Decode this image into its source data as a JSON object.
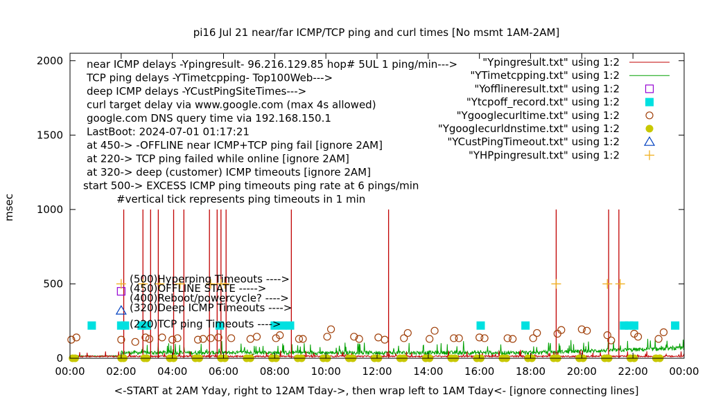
{
  "chart_data": {
    "type": "line",
    "title": "pi16 Jul 21  near/far ICMP/TCP ping and curl times [No msmt 1AM-2AM]",
    "xlabel": "<-START at 2AM Yday, right to 12AM Tday->, then wrap left to 1AM Tday<- [ignore connecting lines]",
    "ylabel": "msec",
    "xlim": [
      0,
      24
    ],
    "ylim": [
      0,
      2050
    ],
    "x_ticks": [
      "00:00",
      "02:00",
      "04:00",
      "06:00",
      "08:00",
      "10:00",
      "12:00",
      "14:00",
      "16:00",
      "18:00",
      "20:00",
      "22:00",
      "00:00"
    ],
    "y_ticks": [
      0,
      500,
      1000,
      1500,
      2000
    ],
    "notes_left": [
      "near ICMP delays -Ypingresult- 96.216.129.85 hop# 5UL 1 ping/min--->",
      "TCP ping delays -YTimetcpping- Top100Web--->",
      "deep ICMP delays -YCustPingSiteTimes--->",
      "curl target delay via www.google.com (max 4s allowed)",
      "google.com DNS query time via 192.168.150.1",
      "LastBoot: 2024-07-01 01:17:21",
      "at 450-> -OFFLINE near ICMP+TCP ping fail [ignore 2AM]",
      "at 220-> TCP ping failed while online [ignore 2AM]",
      "at 320-> deep (customer) ICMP timeouts [ignore 2AM]",
      "start 500-> EXCESS ICMP ping timeouts ping rate at 6 pings/min",
      "#vertical tick represents ping timeouts in 1 min"
    ],
    "inner_labels": [
      "(500)Hyperping Timeouts ---->",
      "(450)OFFLINE STATE ----->",
      "(400)Reboot/powercycle? ---->",
      "(320)Deep ICMP Timeouts ---->",
      "(220)TCP ping Timeouts ---->"
    ],
    "legend_position": "top-right",
    "series": [
      {
        "name": "\"Ypingresult.txt\" using 1:2",
        "color": "#c00000",
        "style": "line"
      },
      {
        "name": "\"YTimetcpping.txt\" using 1:2",
        "color": "#00a000",
        "style": "line"
      },
      {
        "name": "\"Yofflineresult.txt\" using 1:2",
        "color": "#9400d3",
        "style": "open-square"
      },
      {
        "name": "\"Ytcpoff_record.txt\" using 1:2",
        "color": "#00e0e0",
        "style": "filled-square"
      },
      {
        "name": "\"Ygooglecurltime.txt\" using 1:2",
        "color": "#a0400a",
        "style": "open-circle"
      },
      {
        "name": "\"Ygooglecurldnstime.txt\" using 1:2",
        "color": "#c8c800",
        "style": "filled-circle"
      },
      {
        "name": "\"YCustPingTimeout.txt\" using 1:2",
        "color": "#0040c0",
        "style": "open-triangle"
      },
      {
        "name": "\"YHPpingresult.txt\" using 1:2",
        "color": "#f0b020",
        "style": "plus"
      }
    ],
    "ping_spikes_x": [
      2.1,
      2.85,
      3.15,
      3.45,
      4.05,
      4.45,
      5.45,
      5.75,
      5.9,
      6.1,
      8.65,
      12.45,
      19.0,
      21.05,
      21.45
    ],
    "ping_spike_y": 1000,
    "tcp_timeouts": {
      "y": 220,
      "x": [
        0.85,
        2.0,
        2.15,
        2.8,
        3.0,
        5.85,
        8.0,
        8.3,
        8.6,
        16.05,
        17.8,
        21.65,
        21.85,
        22.05,
        23.65
      ]
    },
    "offline": {
      "y": 450,
      "x": [
        2.0
      ]
    },
    "deep_timeouts": {
      "y": 320,
      "x": [
        2.0
      ]
    },
    "hyperping": {
      "y": 500,
      "x": [
        2.0,
        2.85,
        3.5,
        4.3,
        5.5,
        5.9,
        6.05,
        19.0,
        21.0,
        21.5
      ]
    },
    "curl_times": {
      "x": [
        0.05,
        0.25,
        2.0,
        2.55,
        2.95,
        3.1,
        3.6,
        4.0,
        4.2,
        5.0,
        5.2,
        5.5,
        5.8,
        6.3,
        7.05,
        7.3,
        8.05,
        8.2,
        8.95,
        9.1,
        10.05,
        10.2,
        11.1,
        11.3,
        12.05,
        12.3,
        13.05,
        13.2,
        14.05,
        14.25,
        15.0,
        15.2,
        16.0,
        16.2,
        17.1,
        17.3,
        18.1,
        18.25,
        19.05,
        19.2,
        20.0,
        20.2,
        21.0,
        21.15,
        22.05,
        22.2,
        23.0,
        23.2
      ],
      "y": [
        125,
        140,
        125,
        110,
        140,
        130,
        140,
        125,
        135,
        125,
        130,
        135,
        140,
        135,
        130,
        145,
        135,
        155,
        130,
        130,
        145,
        195,
        145,
        130,
        140,
        125,
        135,
        170,
        130,
        185,
        135,
        135,
        140,
        135,
        135,
        130,
        135,
        170,
        165,
        190,
        195,
        185,
        155,
        120,
        165,
        145,
        130,
        175
      ]
    },
    "dns_times": {
      "y": 0,
      "x": [
        0.1,
        0.2,
        2.0,
        2.1,
        2.9,
        3.0,
        3.9,
        4.05,
        4.9,
        5.05,
        5.9,
        6.05,
        6.9,
        7.05,
        7.9,
        8.05,
        8.9,
        9.05,
        9.9,
        10.05,
        10.9,
        11.05,
        11.9,
        12.05,
        12.9,
        13.05,
        13.9,
        14.05,
        14.9,
        15.05,
        15.9,
        16.05,
        16.9,
        17.05,
        17.9,
        18.05,
        18.9,
        19.05,
        19.9,
        20.05,
        20.9,
        21.05,
        21.9,
        22.05,
        22.9,
        23.05
      ]
    }
  }
}
